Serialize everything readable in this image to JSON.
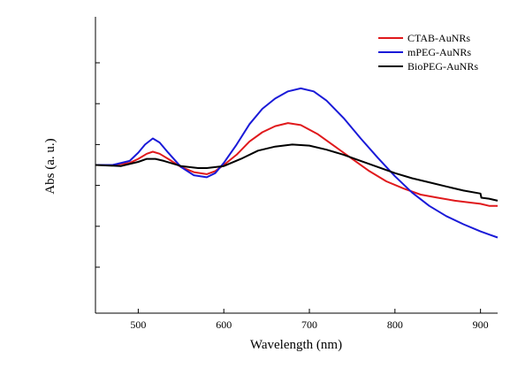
{
  "chart_data": {
    "type": "line",
    "xlabel": "Wavelength (nm)",
    "ylabel": "Abs (a. u.)",
    "xlim": [
      450,
      920
    ],
    "ylim": [
      -1.45,
      1.45
    ],
    "x_ticks": [
      500,
      600,
      700,
      800,
      900
    ],
    "y_ticks": [
      -1.0,
      -0.6,
      -0.2,
      0.2,
      0.6,
      1.0
    ],
    "y_tick_labels_shown": false,
    "grid": false,
    "legend_position": "top-right",
    "series": [
      {
        "name": "CTAB-AuNRs",
        "color": "#e0191c",
        "x": [
          450,
          470,
          490,
          500,
          510,
          517,
          525,
          535,
          550,
          565,
          580,
          590,
          600,
          615,
          630,
          645,
          660,
          675,
          690,
          710,
          730,
          750,
          770,
          790,
          810,
          830,
          850,
          870,
          890,
          900,
          910,
          920
        ],
        "y": [
          0,
          0,
          0.02,
          0.06,
          0.11,
          0.13,
          0.11,
          0.06,
          -0.02,
          -0.07,
          -0.09,
          -0.06,
          0.0,
          0.1,
          0.23,
          0.32,
          0.38,
          0.41,
          0.39,
          0.3,
          0.18,
          0.06,
          -0.06,
          -0.16,
          -0.23,
          -0.29,
          -0.32,
          -0.35,
          -0.37,
          -0.38,
          -0.4,
          -0.4
        ]
      },
      {
        "name": "mPEG-AuNRs",
        "color": "#1a1ad8",
        "x": [
          450,
          470,
          490,
          500,
          508,
          517,
          525,
          535,
          550,
          565,
          580,
          590,
          600,
          615,
          630,
          645,
          660,
          675,
          690,
          705,
          720,
          740,
          760,
          780,
          800,
          820,
          840,
          860,
          880,
          900,
          910,
          920
        ],
        "y": [
          0,
          0,
          0.04,
          0.12,
          0.2,
          0.26,
          0.22,
          0.12,
          -0.02,
          -0.1,
          -0.12,
          -0.08,
          0.02,
          0.2,
          0.4,
          0.55,
          0.65,
          0.72,
          0.75,
          0.72,
          0.63,
          0.46,
          0.26,
          0.07,
          -0.11,
          -0.27,
          -0.4,
          -0.5,
          -0.58,
          -0.65,
          -0.68,
          -0.71
        ]
      },
      {
        "name": "BioPEG-AuNRs",
        "color": "#000000",
        "x": [
          450,
          480,
          500,
          510,
          520,
          530,
          550,
          570,
          580,
          600,
          620,
          640,
          660,
          680,
          700,
          720,
          740,
          760,
          780,
          800,
          820,
          840,
          860,
          880,
          900,
          901,
          910,
          920
        ],
        "y": [
          0,
          -0.01,
          0.03,
          0.06,
          0.06,
          0.04,
          -0.01,
          -0.03,
          -0.03,
          -0.01,
          0.06,
          0.14,
          0.18,
          0.2,
          0.19,
          0.15,
          0.1,
          0.04,
          -0.02,
          -0.08,
          -0.13,
          -0.17,
          -0.21,
          -0.25,
          -0.28,
          -0.32,
          -0.33,
          -0.35
        ]
      }
    ]
  }
}
